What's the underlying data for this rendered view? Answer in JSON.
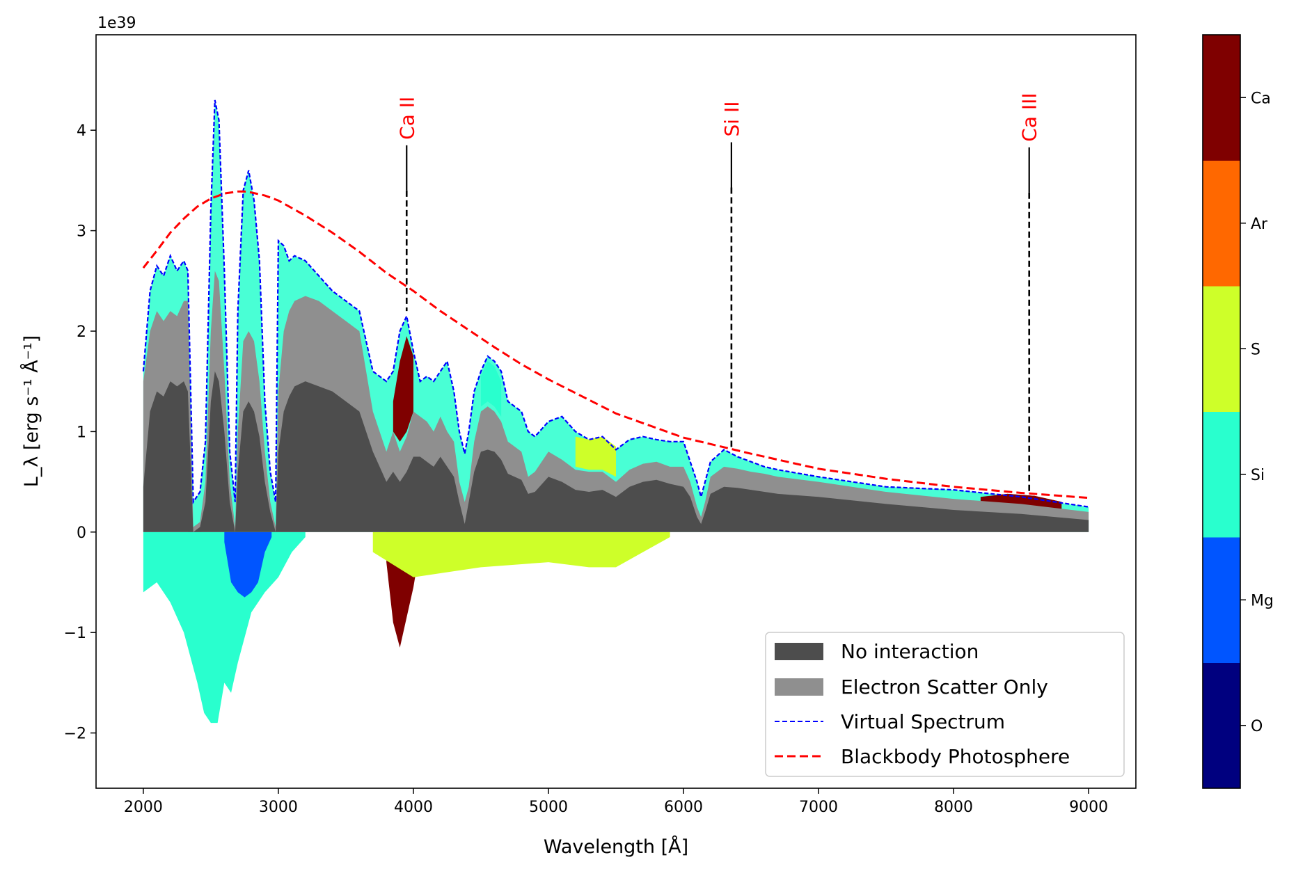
{
  "chart_data": {
    "type": "area",
    "scale_label": "1e39",
    "xlabel": "Wavelength [Å]",
    "ylabel": "L_λ [erg s⁻¹ Å⁻¹]",
    "xlim": [
      1650,
      9350
    ],
    "ylim": [
      -2.55,
      4.95
    ],
    "x_ticks": [
      2000,
      3000,
      4000,
      5000,
      6000,
      7000,
      8000,
      9000
    ],
    "y_ticks": [
      -2,
      -1,
      0,
      1,
      2,
      3,
      4
    ],
    "x_tick_labels": [
      "2000",
      "3000",
      "4000",
      "5000",
      "6000",
      "7000",
      "8000",
      "9000"
    ],
    "y_tick_labels": [
      "−2",
      "−1",
      "0",
      "1",
      "2",
      "3",
      "4"
    ],
    "grid": false,
    "legend_position": "lower-right",
    "legend": [
      {
        "label": "No interaction",
        "kind": "patch",
        "color": "#4d4d4d"
      },
      {
        "label": "Electron Scatter Only",
        "kind": "patch",
        "color": "#8f8f8f"
      },
      {
        "label": "Virtual Spectrum",
        "kind": "dashed-line",
        "color": "#0000ff"
      },
      {
        "label": "Blackbody Photosphere",
        "kind": "dashed-line",
        "color": "#ff0000"
      }
    ],
    "annotations": [
      {
        "label": "Ca II",
        "x": 3950,
        "y_top": 3.85,
        "y_bottom": 2.2
      },
      {
        "label": "Si II",
        "x": 6355,
        "y_top": 3.88,
        "y_bottom": 0.82
      },
      {
        "label": "Ca III",
        "x": 8560,
        "y_top": 3.83,
        "y_bottom": 0.38
      }
    ],
    "annotation_color": "#ff0000",
    "colorbar": {
      "labels": [
        "O",
        "Mg",
        "Si",
        "S",
        "Ar",
        "Ca"
      ],
      "colors": [
        "#00007f",
        "#0055ff",
        "#29ffce",
        "#ceff29",
        "#ff6800",
        "#7f0000"
      ]
    },
    "series": [
      {
        "name": "Virtual Spectrum",
        "style": "dashed",
        "color": "#0000ff",
        "x": [
          2000,
          2050,
          2100,
          2150,
          2200,
          2250,
          2300,
          2330,
          2370,
          2420,
          2460,
          2500,
          2530,
          2560,
          2600,
          2640,
          2680,
          2700,
          2740,
          2780,
          2820,
          2860,
          2900,
          2940,
          2980,
          3000,
          3040,
          3080,
          3120,
          3200,
          3300,
          3400,
          3500,
          3600,
          3700,
          3750,
          3800,
          3850,
          3900,
          3950,
          4000,
          4050,
          4100,
          4150,
          4200,
          4250,
          4300,
          4340,
          4380,
          4410,
          4450,
          4500,
          4550,
          4600,
          4650,
          4700,
          4800,
          4850,
          4900,
          5000,
          5100,
          5200,
          5300,
          5400,
          5500,
          5600,
          5700,
          5800,
          5900,
          6000,
          6050,
          6100,
          6130,
          6160,
          6200,
          6300,
          6400,
          6500,
          6600,
          6700,
          7000,
          7500,
          8000,
          8500,
          9000
        ],
        "y": [
          1.6,
          2.4,
          2.65,
          2.55,
          2.75,
          2.6,
          2.7,
          2.6,
          0.3,
          0.4,
          0.9,
          3.2,
          4.3,
          4.1,
          2.6,
          0.8,
          0.3,
          2.2,
          3.4,
          3.6,
          3.3,
          2.7,
          1.3,
          0.6,
          0.3,
          2.9,
          2.85,
          2.7,
          2.75,
          2.7,
          2.55,
          2.4,
          2.3,
          2.2,
          1.6,
          1.55,
          1.5,
          1.6,
          2.0,
          2.15,
          1.8,
          1.5,
          1.55,
          1.5,
          1.6,
          1.7,
          1.4,
          1.0,
          0.78,
          1.0,
          1.4,
          1.6,
          1.75,
          1.7,
          1.6,
          1.3,
          1.2,
          1.0,
          0.95,
          1.1,
          1.15,
          1.0,
          0.92,
          0.95,
          0.82,
          0.92,
          0.95,
          0.92,
          0.9,
          0.9,
          0.7,
          0.5,
          0.35,
          0.5,
          0.7,
          0.82,
          0.75,
          0.7,
          0.65,
          0.62,
          0.55,
          0.45,
          0.42,
          0.35,
          0.25
        ]
      },
      {
        "name": "Electron Scatter Only",
        "style": "fill",
        "color": "#8f8f8f",
        "x": [
          2000,
          2050,
          2100,
          2150,
          2200,
          2250,
          2300,
          2330,
          2370,
          2420,
          2460,
          2500,
          2530,
          2560,
          2600,
          2640,
          2680,
          2700,
          2740,
          2780,
          2820,
          2860,
          2900,
          2940,
          2980,
          3000,
          3040,
          3080,
          3120,
          3200,
          3300,
          3400,
          3500,
          3600,
          3700,
          3750,
          3800,
          3850,
          3900,
          3950,
          4000,
          4050,
          4100,
          4150,
          4200,
          4250,
          4300,
          4340,
          4380,
          4410,
          4450,
          4500,
          4550,
          4600,
          4650,
          4700,
          4800,
          4850,
          4900,
          5000,
          5100,
          5200,
          5300,
          5400,
          5500,
          5600,
          5700,
          5800,
          5900,
          6000,
          6050,
          6100,
          6130,
          6160,
          6200,
          6300,
          6400,
          6500,
          6600,
          6700,
          7000,
          7500,
          8000,
          8500,
          9000
        ],
        "y": [
          1.5,
          2.0,
          2.2,
          2.1,
          2.2,
          2.15,
          2.3,
          2.3,
          0.05,
          0.1,
          0.5,
          2.0,
          2.6,
          2.5,
          1.6,
          0.5,
          0.05,
          1.0,
          1.9,
          2.0,
          1.9,
          1.5,
          0.8,
          0.3,
          0.05,
          1.4,
          2.0,
          2.2,
          2.3,
          2.35,
          2.3,
          2.2,
          2.1,
          2.0,
          1.2,
          1.0,
          0.8,
          1.0,
          0.8,
          0.95,
          1.2,
          1.15,
          1.1,
          1.0,
          1.15,
          1.0,
          0.9,
          0.5,
          0.3,
          0.45,
          0.9,
          1.2,
          1.25,
          1.2,
          1.1,
          0.9,
          0.8,
          0.55,
          0.6,
          0.8,
          0.72,
          0.62,
          0.6,
          0.6,
          0.5,
          0.62,
          0.68,
          0.7,
          0.65,
          0.65,
          0.5,
          0.25,
          0.15,
          0.3,
          0.55,
          0.65,
          0.63,
          0.6,
          0.58,
          0.55,
          0.5,
          0.4,
          0.33,
          0.28,
          0.2
        ]
      },
      {
        "name": "No interaction",
        "style": "fill",
        "color": "#4d4d4d",
        "x": [
          2000,
          2050,
          2100,
          2150,
          2200,
          2250,
          2300,
          2330,
          2370,
          2420,
          2460,
          2500,
          2530,
          2560,
          2600,
          2640,
          2680,
          2700,
          2740,
          2780,
          2820,
          2860,
          2900,
          2940,
          2980,
          3000,
          3040,
          3080,
          3120,
          3200,
          3300,
          3400,
          3500,
          3600,
          3700,
          3750,
          3800,
          3850,
          3900,
          3950,
          4000,
          4050,
          4100,
          4150,
          4200,
          4250,
          4300,
          4340,
          4380,
          4410,
          4450,
          4500,
          4550,
          4600,
          4650,
          4700,
          4800,
          4850,
          4900,
          5000,
          5100,
          5200,
          5300,
          5400,
          5500,
          5600,
          5700,
          5800,
          5900,
          6000,
          6050,
          6100,
          6130,
          6160,
          6200,
          6300,
          6400,
          6500,
          6600,
          6700,
          7000,
          7500,
          8000,
          8500,
          9000
        ],
        "y": [
          0.45,
          1.2,
          1.4,
          1.35,
          1.5,
          1.45,
          1.5,
          1.4,
          0.0,
          0.05,
          0.3,
          1.3,
          1.6,
          1.5,
          1.0,
          0.3,
          0.0,
          0.6,
          1.2,
          1.3,
          1.2,
          0.95,
          0.5,
          0.2,
          0.0,
          0.8,
          1.2,
          1.35,
          1.45,
          1.5,
          1.45,
          1.4,
          1.3,
          1.2,
          0.8,
          0.65,
          0.5,
          0.6,
          0.5,
          0.6,
          0.75,
          0.75,
          0.7,
          0.65,
          0.75,
          0.65,
          0.55,
          0.3,
          0.08,
          0.3,
          0.6,
          0.8,
          0.82,
          0.8,
          0.72,
          0.58,
          0.52,
          0.38,
          0.4,
          0.55,
          0.5,
          0.42,
          0.4,
          0.42,
          0.35,
          0.45,
          0.5,
          0.52,
          0.48,
          0.45,
          0.35,
          0.15,
          0.08,
          0.2,
          0.38,
          0.45,
          0.44,
          0.42,
          0.4,
          0.38,
          0.35,
          0.28,
          0.22,
          0.18,
          0.12
        ]
      },
      {
        "name": "Blackbody Photosphere",
        "style": "dashed",
        "color": "#ff0000",
        "x": [
          2000,
          2100,
          2200,
          2300,
          2400,
          2500,
          2600,
          2700,
          2750,
          2800,
          2900,
          3000,
          3200,
          3400,
          3600,
          3800,
          4000,
          4200,
          4400,
          4600,
          4800,
          5000,
          5500,
          6000,
          6500,
          7000,
          7500,
          8000,
          8500,
          9000
        ],
        "y": [
          2.63,
          2.8,
          2.98,
          3.12,
          3.24,
          3.32,
          3.37,
          3.39,
          3.39,
          3.38,
          3.35,
          3.3,
          3.15,
          2.98,
          2.79,
          2.58,
          2.4,
          2.2,
          2.02,
          1.84,
          1.67,
          1.52,
          1.18,
          0.94,
          0.78,
          0.63,
          0.53,
          0.45,
          0.39,
          0.34
        ]
      }
    ],
    "element_contributions": [
      {
        "element": "O",
        "x": [
          2330,
          2360,
          2380,
          2400,
          2430
        ],
        "y_top": [
          0.0,
          0.0,
          0.0,
          0.0,
          0.0
        ],
        "y_bottom": [
          -0.3,
          -1.0,
          -1.2,
          -0.9,
          -0.2
        ]
      },
      {
        "element": "Si",
        "x": [
          2000,
          2100,
          2200,
          2300,
          2400,
          2450,
          2500,
          2550,
          2600,
          2650,
          2700,
          2800,
          2900,
          3000,
          3100,
          3200
        ],
        "y_top": [
          0.0,
          0.0,
          0.0,
          0.0,
          0.0,
          0.0,
          0.0,
          0.0,
          0.0,
          0.0,
          0.0,
          0.0,
          0.0,
          0.0,
          0.0,
          0.0
        ],
        "y_bottom": [
          -0.6,
          -0.5,
          -0.7,
          -1.0,
          -1.5,
          -1.8,
          -1.9,
          -1.9,
          -1.5,
          -1.6,
          -1.3,
          -0.8,
          -0.6,
          -0.45,
          -0.2,
          -0.05
        ]
      },
      {
        "element": "Mg",
        "x": [
          2600,
          2650,
          2700,
          2750,
          2800,
          2850,
          2900,
          2950
        ],
        "y_top": [
          0.0,
          0.0,
          0.0,
          0.0,
          0.0,
          0.0,
          0.0,
          0.0
        ],
        "y_bottom": [
          -0.1,
          -0.5,
          -0.6,
          -0.65,
          -0.6,
          -0.5,
          -0.2,
          -0.05
        ]
      },
      {
        "element": "Ca",
        "x": [
          3800,
          3850,
          3900,
          3950,
          4000,
          4050
        ],
        "y_top": [
          0.0,
          0.0,
          0.0,
          0.0,
          0.0,
          0.0
        ],
        "y_bottom": [
          -0.3,
          -0.9,
          -1.15,
          -0.85,
          -0.55,
          -0.15
        ]
      },
      {
        "element": "S",
        "x": [
          3700,
          4000,
          4500,
          5000,
          5300,
          5500,
          5700,
          5900
        ],
        "y_top": [
          0.0,
          0.0,
          0.0,
          0.0,
          0.0,
          0.0,
          0.0,
          0.0
        ],
        "y_bottom": [
          -0.2,
          -0.45,
          -0.35,
          -0.3,
          -0.35,
          -0.35,
          -0.2,
          -0.05
        ]
      },
      {
        "element": "Ca",
        "x": [
          3850,
          3900,
          3950,
          4000
        ],
        "y_top": [
          1.3,
          1.7,
          1.95,
          1.75
        ],
        "y_bottom": [
          1.0,
          0.9,
          1.0,
          1.2
        ]
      },
      {
        "element": "Si",
        "x": [
          4500,
          4550,
          4600,
          4650
        ],
        "y_top": [
          1.55,
          1.7,
          1.65,
          1.5
        ],
        "y_bottom": [
          1.25,
          1.3,
          1.25,
          1.15
        ]
      },
      {
        "element": "S",
        "x": [
          5200,
          5300,
          5400,
          5500
        ],
        "y_top": [
          0.95,
          0.92,
          0.95,
          0.85
        ],
        "y_bottom": [
          0.65,
          0.62,
          0.62,
          0.55
        ]
      },
      {
        "element": "Ca",
        "x": [
          8200,
          8400,
          8600,
          8800
        ],
        "y_top": [
          0.35,
          0.38,
          0.36,
          0.3
        ],
        "y_bottom": [
          0.25,
          0.27,
          0.26,
          0.22
        ]
      }
    ]
  }
}
